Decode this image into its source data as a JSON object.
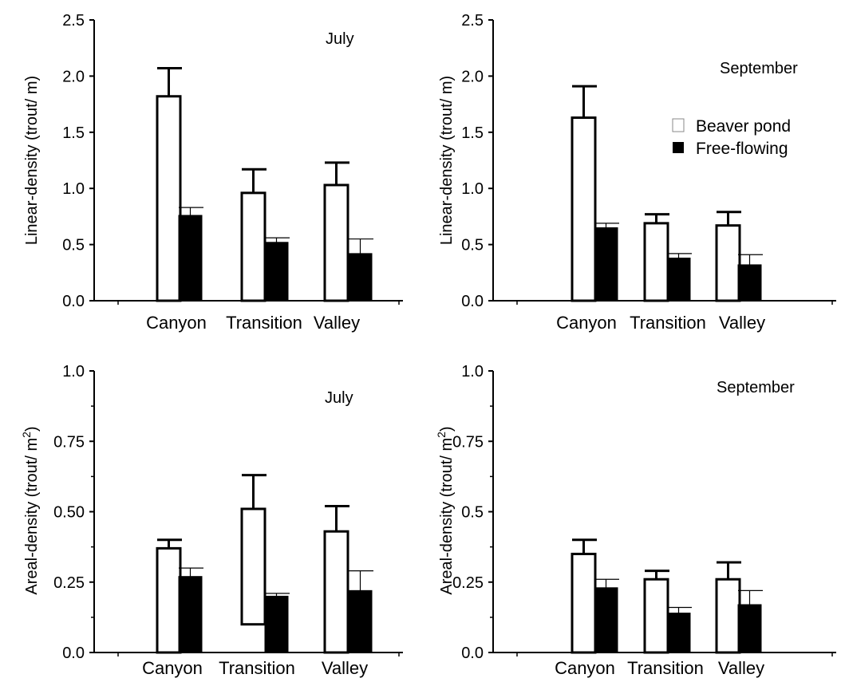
{
  "legend": {
    "items": [
      {
        "label": "Beaver pond",
        "color": "#ffffff"
      },
      {
        "label": "Free-flowing",
        "color": "#000000"
      }
    ]
  },
  "chart_data": [
    {
      "type": "bar",
      "title": "July",
      "ylabel": "Linear-density (trout/ m)",
      "ylim": [
        0,
        2.5
      ],
      "yticks": [
        "0.0",
        "0.5",
        "1.0",
        "1.5",
        "2.0",
        "2.5"
      ],
      "categories": [
        "Canyon",
        "Transition",
        "Valley"
      ],
      "series": [
        {
          "name": "Beaver pond",
          "values": [
            1.82,
            0.96,
            1.03
          ],
          "errors": [
            0.25,
            0.21,
            0.2
          ],
          "bottoms": [
            0,
            0,
            0
          ]
        },
        {
          "name": "Free-flowing",
          "values": [
            0.76,
            0.52,
            0.42
          ],
          "errors": [
            0.07,
            0.04,
            0.13
          ],
          "bottoms": [
            0,
            0,
            0
          ]
        }
      ]
    },
    {
      "type": "bar",
      "title": "September",
      "ylabel": "Linear-density (trout/ m)",
      "ylim": [
        0,
        2.5
      ],
      "yticks": [
        "0.0",
        "0.5",
        "1.0",
        "1.5",
        "2.0",
        "2.5"
      ],
      "categories": [
        "Canyon",
        "Transition",
        "Valley"
      ],
      "series": [
        {
          "name": "Beaver pond",
          "values": [
            1.63,
            0.69,
            0.67
          ],
          "errors": [
            0.28,
            0.08,
            0.12
          ],
          "bottoms": [
            0,
            0,
            0
          ]
        },
        {
          "name": "Free-flowing",
          "values": [
            0.65,
            0.38,
            0.32
          ],
          "errors": [
            0.04,
            0.04,
            0.09
          ],
          "bottoms": [
            0,
            0,
            0
          ]
        }
      ]
    },
    {
      "type": "bar",
      "title": "July",
      "ylabel_main": "Areal-density (trout/ m",
      "ylabel_sup": "2",
      "ylabel_end": ")",
      "ylim": [
        0,
        1.0
      ],
      "yticks": [
        "0.0",
        "0.25",
        "0.50",
        "0.75",
        "1.0"
      ],
      "categories": [
        "Canyon",
        "Transition",
        "Valley"
      ],
      "series": [
        {
          "name": "Beaver pond",
          "values": [
            0.37,
            0.51,
            0.43
          ],
          "errors": [
            0.03,
            0.12,
            0.09
          ],
          "bottoms": [
            0,
            0.1,
            0
          ]
        },
        {
          "name": "Free-flowing",
          "values": [
            0.27,
            0.2,
            0.22
          ],
          "errors": [
            0.03,
            0.01,
            0.07
          ],
          "bottoms": [
            0,
            0,
            0
          ]
        }
      ]
    },
    {
      "type": "bar",
      "title": "September",
      "ylabel_main": "Areal-density (trout/ m",
      "ylabel_sup": "2",
      "ylabel_end": ")",
      "ylim": [
        0,
        1.0
      ],
      "yticks": [
        "0.0",
        "0.25",
        "0.5",
        "0.75",
        "1.0"
      ],
      "categories": [
        "Canyon",
        "Transition",
        "Valley"
      ],
      "series": [
        {
          "name": "Beaver pond",
          "values": [
            0.35,
            0.26,
            0.26
          ],
          "errors": [
            0.05,
            0.03,
            0.06
          ],
          "bottoms": [
            0,
            0,
            0
          ]
        },
        {
          "name": "Free-flowing",
          "values": [
            0.23,
            0.14,
            0.17
          ],
          "errors": [
            0.03,
            0.02,
            0.05
          ],
          "bottoms": [
            0,
            0,
            0
          ]
        }
      ]
    }
  ]
}
